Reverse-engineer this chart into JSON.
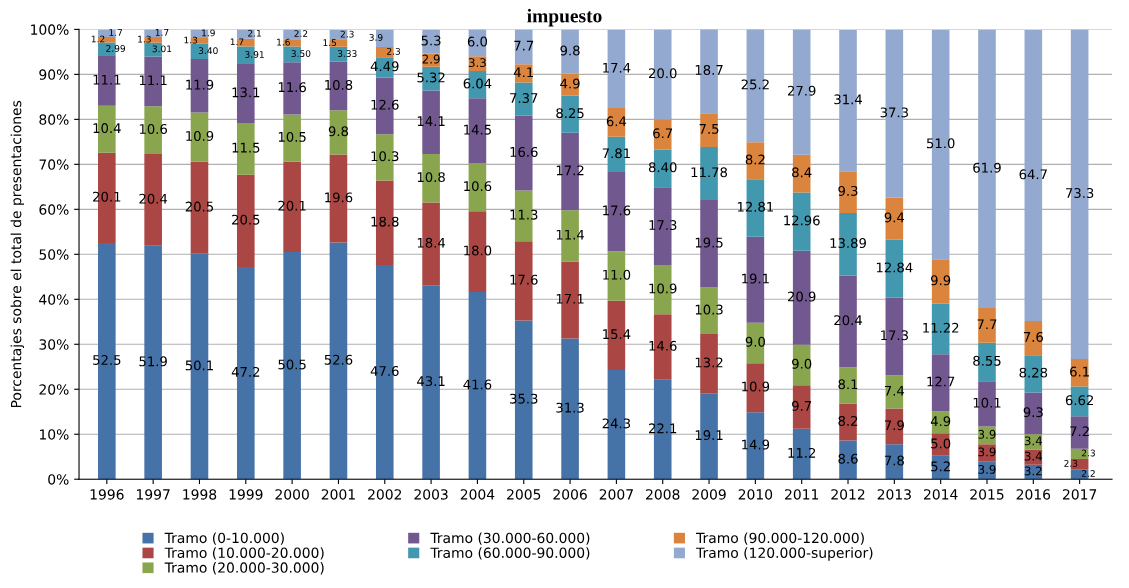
{
  "chart_data": {
    "type": "bar",
    "stacked": true,
    "title": "impuesto",
    "ylabel": "Porcentajes sobre el total de presentaciones",
    "categories": [
      "1996",
      "1997",
      "1998",
      "1999",
      "2000",
      "2001",
      "2002",
      "2003",
      "2004",
      "2005",
      "2006",
      "2007",
      "2008",
      "2009",
      "2010",
      "2011",
      "2012",
      "2013",
      "2014",
      "2015",
      "2016",
      "2017"
    ],
    "series": [
      {
        "name": "Tramo (0-10.000)",
        "color": "#4572a7",
        "values": [
          52.5,
          51.9,
          50.1,
          47.2,
          50.5,
          52.6,
          47.6,
          43.1,
          41.6,
          35.3,
          31.3,
          24.3,
          22.1,
          19.1,
          14.9,
          11.2,
          8.6,
          7.8,
          5.2,
          3.9,
          3.2,
          2.2
        ],
        "value_labels": [
          "52.5",
          "51.9",
          "50.1",
          "47.2",
          "50.5",
          "52.6",
          "47.6",
          "43.1",
          "41.6",
          "35.3",
          "31.3",
          "24.3",
          "22.1",
          "19.1",
          "14.9",
          "11.2",
          "8.6",
          "7.8",
          "5.2",
          "3.9",
          "3.2",
          "2.2"
        ]
      },
      {
        "name": "Tramo (10.000-20.000)",
        "color": "#aa4643",
        "values": [
          20.1,
          20.4,
          20.5,
          20.5,
          20.1,
          19.6,
          18.8,
          18.4,
          18.0,
          17.6,
          17.1,
          15.4,
          14.6,
          13.2,
          10.9,
          9.7,
          8.2,
          7.9,
          5.0,
          3.9,
          3.4,
          2.3
        ],
        "value_labels": [
          "20.1",
          "20.4",
          "20.5",
          "20.5",
          "20.1",
          "19.6",
          "18.8",
          "18.4",
          "18.0",
          "17.6",
          "17.1",
          "15.4",
          "14.6",
          "13.2",
          "10.9",
          "9.7",
          "8.2",
          "7.9",
          "5.0",
          "3.9",
          "3.4",
          "2.3"
        ]
      },
      {
        "name": "Tramo (20.000-30.000)",
        "color": "#89a54e",
        "values": [
          10.4,
          10.6,
          10.9,
          11.5,
          10.5,
          9.8,
          10.3,
          10.8,
          10.6,
          11.3,
          11.4,
          11.0,
          10.9,
          10.3,
          9.0,
          9.0,
          8.1,
          7.4,
          4.9,
          3.9,
          3.4,
          2.3
        ],
        "value_labels": [
          "10.4",
          "10.6",
          "10.9",
          "11.5",
          "10.5",
          "9.8",
          "10.3",
          "10.8",
          "10.6",
          "11.3",
          "11.4",
          "11.0",
          "10.9",
          "10.3",
          "9.0",
          "9.0",
          "8.1",
          "7.4",
          "4.9",
          "3.9",
          "3.4",
          "2.3"
        ]
      },
      {
        "name": "Tramo (30.000-60.000)",
        "color": "#71588f",
        "values": [
          11.1,
          11.1,
          11.9,
          13.1,
          11.6,
          10.8,
          12.6,
          14.1,
          14.5,
          16.6,
          17.2,
          17.6,
          17.3,
          19.5,
          19.1,
          20.9,
          20.4,
          17.3,
          12.7,
          10.1,
          9.3,
          7.2
        ],
        "value_labels": [
          "11.1",
          "11.1",
          "11.9",
          "13.1",
          "11.6",
          "10.8",
          "12.6",
          "14.1",
          "14.5",
          "16.6",
          "17.2",
          "17.6",
          "17.3",
          "19.5",
          "19.1",
          "20.9",
          "20.4",
          "17.3",
          "12.7",
          "10.1",
          "9.3",
          "7.2"
        ]
      },
      {
        "name": "Tramo (60.000-90.000)",
        "color": "#4198af",
        "values": [
          2.99,
          3.01,
          3.4,
          3.91,
          3.5,
          3.33,
          4.49,
          5.32,
          6.04,
          7.37,
          8.25,
          7.81,
          8.4,
          11.78,
          12.81,
          12.96,
          13.89,
          12.84,
          11.22,
          8.55,
          8.28,
          6.62
        ],
        "value_labels": [
          "2.99",
          "3.01",
          "3.40",
          "3.91",
          "3.50",
          "3.33",
          "4.49",
          "5.32",
          "6.04",
          "7.37",
          "8.25",
          "7.81",
          "8.40",
          "11.78",
          "12.81",
          "12.96",
          "13.89",
          "12.84",
          "11.22",
          "8.55",
          "8.28",
          "6.62"
        ]
      },
      {
        "name": "Tramo (90.000-120.000)",
        "color": "#db843d",
        "values": [
          1.2,
          1.3,
          1.3,
          1.7,
          1.6,
          1.5,
          2.3,
          2.9,
          3.3,
          4.1,
          4.9,
          6.4,
          6.7,
          7.5,
          8.2,
          8.4,
          9.3,
          9.4,
          9.9,
          7.7,
          7.6,
          6.1
        ],
        "value_labels": [
          "1.2",
          "1.3",
          "1.3",
          "1.7",
          "1.6",
          "1.5",
          "2.3",
          "2.9",
          "3.3",
          "4.1",
          "4.9",
          "6.4",
          "6.7",
          "7.5",
          "8.2",
          "8.4",
          "9.3",
          "9.4",
          "9.9",
          "7.7",
          "7.6",
          "6.1"
        ]
      },
      {
        "name": "Tramo (120.000-superior)",
        "color": "#93a9cf",
        "values": [
          1.7,
          1.7,
          1.9,
          2.1,
          2.2,
          2.3,
          3.9,
          5.3,
          6.0,
          7.7,
          9.8,
          17.4,
          20.0,
          18.7,
          25.2,
          27.9,
          31.4,
          37.3,
          51.0,
          61.9,
          64.7,
          73.3
        ],
        "value_labels": [
          "1.7",
          "1.7",
          "1.9",
          "2.1",
          "2.2",
          "2.3",
          "3.9",
          "5.3",
          "6.0",
          "7.7",
          "9.8",
          "17.4",
          "20.0",
          "18.7",
          "25.2",
          "27.9",
          "31.4",
          "37.3",
          "51.0",
          "61.9",
          "64.7",
          "73.3"
        ]
      }
    ],
    "ylim": [
      0,
      100
    ],
    "yticks": [
      {
        "value": 0,
        "label": "0%"
      },
      {
        "value": 10,
        "label": "10%"
      },
      {
        "value": 20,
        "label": "20%"
      },
      {
        "value": 30,
        "label": "30%"
      },
      {
        "value": 40,
        "label": "40%"
      },
      {
        "value": 50,
        "label": "50%"
      },
      {
        "value": 60,
        "label": "60%"
      },
      {
        "value": 70,
        "label": "70%"
      },
      {
        "value": 80,
        "label": "80%"
      },
      {
        "value": 90,
        "label": "90%"
      },
      {
        "value": 100,
        "label": "100%"
      }
    ],
    "grid": "y",
    "legend": "bottom"
  }
}
